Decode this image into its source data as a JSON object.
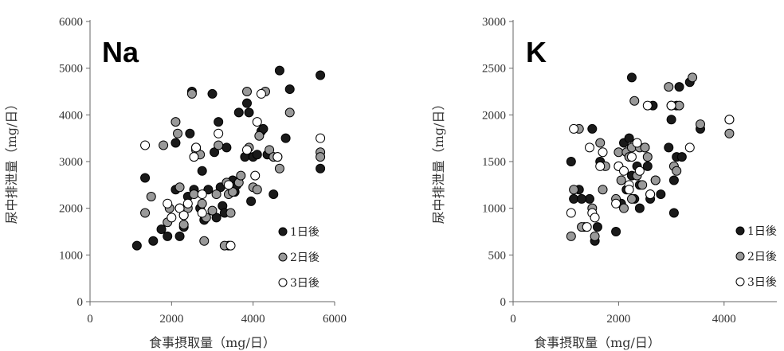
{
  "chart_data": [
    {
      "type": "scatter",
      "title": "Na",
      "xlabel": "食事摂取量（mg/日）",
      "ylabel": "尿中排泄量（mg/日）",
      "xlim": [
        0,
        6000
      ],
      "ylim": [
        0,
        6000
      ],
      "xticks": [
        "0",
        "2000",
        "4000",
        "6000"
      ],
      "yticks": [
        "0",
        "1000",
        "2000",
        "3000",
        "4000",
        "5000",
        "6000"
      ],
      "legend_position": "bottom-right",
      "series": [
        {
          "name": "1日後",
          "color": "#1a1a1a",
          "points": [
            [
              1150,
              1200
            ],
            [
              1350,
              2650
            ],
            [
              1550,
              1300
            ],
            [
              1750,
              1550
            ],
            [
              1900,
              1400
            ],
            [
              2100,
              3400
            ],
            [
              2100,
              2400
            ],
            [
              2200,
              1400
            ],
            [
              2200,
              2000
            ],
            [
              2300,
              1850
            ],
            [
              2400,
              2250
            ],
            [
              2450,
              3600
            ],
            [
              2500,
              4500
            ],
            [
              2550,
              2400
            ],
            [
              2600,
              3300
            ],
            [
              2700,
              2000
            ],
            [
              2750,
              2800
            ],
            [
              2800,
              1750
            ],
            [
              2900,
              2400
            ],
            [
              3000,
              4450
            ],
            [
              3050,
              3200
            ],
            [
              3100,
              1800
            ],
            [
              3150,
              3850
            ],
            [
              3200,
              2450
            ],
            [
              3250,
              2050
            ],
            [
              3300,
              1900
            ],
            [
              3350,
              3300
            ],
            [
              3400,
              1200
            ],
            [
              3500,
              2600
            ],
            [
              3550,
              2350
            ],
            [
              3600,
              2500
            ],
            [
              3650,
              4050
            ],
            [
              3800,
              3100
            ],
            [
              3850,
              4250
            ],
            [
              3900,
              4050
            ],
            [
              3950,
              2150
            ],
            [
              4000,
              3100
            ],
            [
              4100,
              3150
            ],
            [
              4200,
              3650
            ],
            [
              4250,
              3700
            ],
            [
              4350,
              3150
            ],
            [
              4500,
              2300
            ],
            [
              4650,
              4950
            ],
            [
              4900,
              4550
            ],
            [
              4800,
              3500
            ],
            [
              5650,
              4850
            ],
            [
              5650,
              2850
            ],
            [
              2300,
              1600
            ]
          ]
        },
        {
          "name": "2日後",
          "color": "#999999",
          "points": [
            [
              1350,
              1900
            ],
            [
              1500,
              2250
            ],
            [
              1800,
              3350
            ],
            [
              1900,
              1700
            ],
            [
              1950,
              2000
            ],
            [
              2100,
              3850
            ],
            [
              2150,
              3600
            ],
            [
              2200,
              2450
            ],
            [
              2300,
              1650
            ],
            [
              2400,
              2000
            ],
            [
              2500,
              4450
            ],
            [
              2550,
              2300
            ],
            [
              2600,
              3250
            ],
            [
              2700,
              3150
            ],
            [
              2750,
              2100
            ],
            [
              2800,
              1300
            ],
            [
              2850,
              1800
            ],
            [
              3000,
              1950
            ],
            [
              3100,
              2300
            ],
            [
              3150,
              3350
            ],
            [
              3300,
              1200
            ],
            [
              3350,
              2550
            ],
            [
              3400,
              2300
            ],
            [
              3450,
              1900
            ],
            [
              3500,
              2350
            ],
            [
              3650,
              2550
            ],
            [
              3700,
              2700
            ],
            [
              3850,
              4500
            ],
            [
              3900,
              3300
            ],
            [
              4000,
              2450
            ],
            [
              4100,
              2400
            ],
            [
              4150,
              3550
            ],
            [
              4300,
              4500
            ],
            [
              4400,
              3250
            ],
            [
              4500,
              3100
            ],
            [
              4600,
              3100
            ],
            [
              4650,
              2850
            ],
            [
              4900,
              4050
            ],
            [
              5650,
              3200
            ],
            [
              5650,
              3100
            ]
          ]
        },
        {
          "name": "3日後",
          "color": "#ffffff",
          "points": [
            [
              1350,
              3350
            ],
            [
              1900,
              2100
            ],
            [
              2000,
              1800
            ],
            [
              2200,
              2000
            ],
            [
              2300,
              1850
            ],
            [
              2400,
              2100
            ],
            [
              2550,
              3100
            ],
            [
              2600,
              3300
            ],
            [
              2750,
              2300
            ],
            [
              2750,
              1900
            ],
            [
              3150,
              3600
            ],
            [
              3400,
              2500
            ],
            [
              3450,
              1200
            ],
            [
              3850,
              3250
            ],
            [
              4050,
              2700
            ],
            [
              4100,
              3850
            ],
            [
              4200,
              4450
            ],
            [
              4600,
              3100
            ],
            [
              5650,
              3500
            ]
          ]
        }
      ]
    },
    {
      "type": "scatter",
      "title": "K",
      "xlabel": "食事摂取量（mg/日）",
      "ylabel": "尿中排泄量（mg/日）",
      "xlim": [
        0,
        5000
      ],
      "ylim": [
        0,
        3000
      ],
      "xticks": [
        "0",
        "2000",
        "4000"
      ],
      "yticks": [
        "0",
        "500",
        "1000",
        "1500",
        "2000",
        "2500",
        "3000"
      ],
      "legend_position": "bottom-right",
      "series": [
        {
          "name": "1日後",
          "color": "#1a1a1a",
          "points": [
            [
              1100,
              1500
            ],
            [
              1150,
              1100
            ],
            [
              1250,
              1200
            ],
            [
              1350,
              800
            ],
            [
              1450,
              1100
            ],
            [
              1500,
              1850
            ],
            [
              1550,
              650
            ],
            [
              1600,
              800
            ],
            [
              1650,
              1500
            ],
            [
              1950,
              750
            ],
            [
              2000,
              1450
            ],
            [
              2050,
              1050
            ],
            [
              2100,
              1700
            ],
            [
              2150,
              1200
            ],
            [
              2200,
              1750
            ],
            [
              2250,
              2400
            ],
            [
              2250,
              1350
            ],
            [
              2300,
              1100
            ],
            [
              2350,
              1450
            ],
            [
              2400,
              1000
            ],
            [
              2400,
              1250
            ],
            [
              2500,
              1650
            ],
            [
              2550,
              1450
            ],
            [
              2600,
              1100
            ],
            [
              2650,
              2100
            ],
            [
              2700,
              1300
            ],
            [
              2800,
              1150
            ],
            [
              2950,
              1650
            ],
            [
              3000,
              1950
            ],
            [
              3050,
              1300
            ],
            [
              3050,
              950
            ],
            [
              3100,
              2100
            ],
            [
              3100,
              1550
            ],
            [
              3150,
              2300
            ],
            [
              3200,
              1550
            ],
            [
              3350,
              2350
            ],
            [
              3550,
              1850
            ],
            [
              4100,
              1950
            ],
            [
              1300,
              1100
            ]
          ]
        },
        {
          "name": "2日後",
          "color": "#999999",
          "points": [
            [
              1100,
              700
            ],
            [
              1150,
              1200
            ],
            [
              1250,
              1850
            ],
            [
              1300,
              800
            ],
            [
              1500,
              1000
            ],
            [
              1550,
              700
            ],
            [
              1650,
              1700
            ],
            [
              1700,
              1200
            ],
            [
              1750,
              1450
            ],
            [
              1950,
              1100
            ],
            [
              2000,
              1600
            ],
            [
              2050,
              1300
            ],
            [
              2100,
              1000
            ],
            [
              2150,
              1600
            ],
            [
              2200,
              1550
            ],
            [
              2250,
              1100
            ],
            [
              2250,
              1650
            ],
            [
              2300,
              2150
            ],
            [
              2350,
              1350
            ],
            [
              2400,
              1650
            ],
            [
              2450,
              1250
            ],
            [
              2500,
              1650
            ],
            [
              2550,
              1550
            ],
            [
              2600,
              1150
            ],
            [
              2700,
              1300
            ],
            [
              2950,
              2300
            ],
            [
              3000,
              2100
            ],
            [
              3050,
              1450
            ],
            [
              3100,
              1400
            ],
            [
              3150,
              2100
            ],
            [
              3400,
              2400
            ],
            [
              3550,
              1900
            ],
            [
              4100,
              1800
            ]
          ]
        },
        {
          "name": "3日後",
          "color": "#ffffff",
          "points": [
            [
              1100,
              950
            ],
            [
              1150,
              1850
            ],
            [
              1400,
              800
            ],
            [
              1450,
              1650
            ],
            [
              1500,
              950
            ],
            [
              1550,
              900
            ],
            [
              1650,
              1450
            ],
            [
              1700,
              1600
            ],
            [
              1950,
              1050
            ],
            [
              2000,
              1450
            ],
            [
              2100,
              1400
            ],
            [
              2200,
              1250
            ],
            [
              2200,
              1200
            ],
            [
              2250,
              1550
            ],
            [
              2350,
              1700
            ],
            [
              2400,
              1400
            ],
            [
              2550,
              2100
            ],
            [
              2600,
              1150
            ],
            [
              3000,
              2100
            ],
            [
              3350,
              1650
            ],
            [
              4100,
              1950
            ]
          ]
        }
      ]
    }
  ]
}
